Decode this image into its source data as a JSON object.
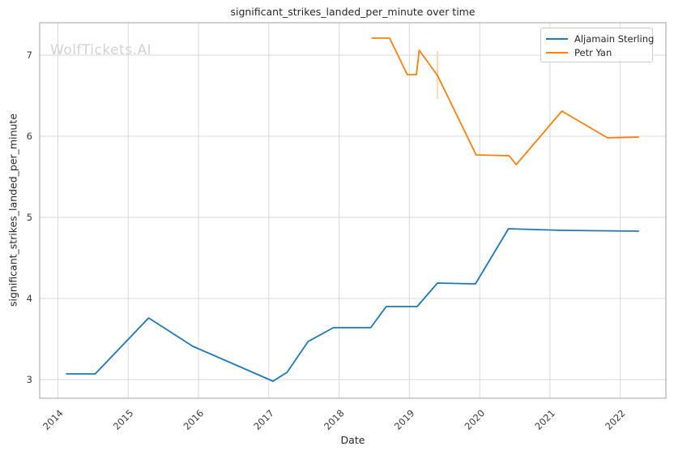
{
  "watermark": "WolfTickets.AI",
  "colors": {
    "grid": "#d9d9d9",
    "plot_border": "#b0b0b0",
    "text": "#262626",
    "tick_text": "#3a3a3a",
    "watermark": "#d2d2d2",
    "sterling_blue": "#1f77b4",
    "yan_orange": "#ff7f0e",
    "error_bar_orange": "#ffcf9e"
  },
  "chart_data": {
    "type": "line",
    "title": "significant_strikes_landed_per_minute over time",
    "xlabel": "Date",
    "ylabel": "significant_strikes_landed_per_minute",
    "x_ticks": [
      2014,
      2015,
      2016,
      2017,
      2018,
      2019,
      2020,
      2021,
      2022
    ],
    "y_ticks": [
      3,
      4,
      5,
      6,
      7
    ],
    "xlim": [
      2013.74,
      2022.65
    ],
    "ylim": [
      2.77,
      7.4
    ],
    "grid": true,
    "legend_position": "upper right",
    "series": [
      {
        "name": "Aljamain Sterling",
        "color": "#1f77b4",
        "x": [
          2014.12,
          2014.53,
          2015.29,
          2015.92,
          2017.06,
          2017.26,
          2017.56,
          2017.92,
          2018.45,
          2018.67,
          2019.11,
          2019.4,
          2019.94,
          2020.41,
          2021.16,
          2022.26
        ],
        "y": [
          3.07,
          3.07,
          3.76,
          3.41,
          2.98,
          3.09,
          3.47,
          3.64,
          3.64,
          3.9,
          3.9,
          4.19,
          4.18,
          4.86,
          4.84,
          4.83
        ]
      },
      {
        "name": "Petr Yan",
        "color": "#ff7f0e",
        "x": [
          2018.47,
          2018.72,
          2018.97,
          2019.1,
          2019.14,
          2019.4,
          2019.95,
          2020.42,
          2020.52,
          2021.17,
          2021.82,
          2022.26
        ],
        "y": [
          7.21,
          7.21,
          6.76,
          6.76,
          7.06,
          6.75,
          5.77,
          5.76,
          5.65,
          6.31,
          5.98,
          5.99
        ],
        "error_bar": {
          "x": 2019.4,
          "y_low": 6.46,
          "y_high": 7.05
        }
      }
    ]
  }
}
